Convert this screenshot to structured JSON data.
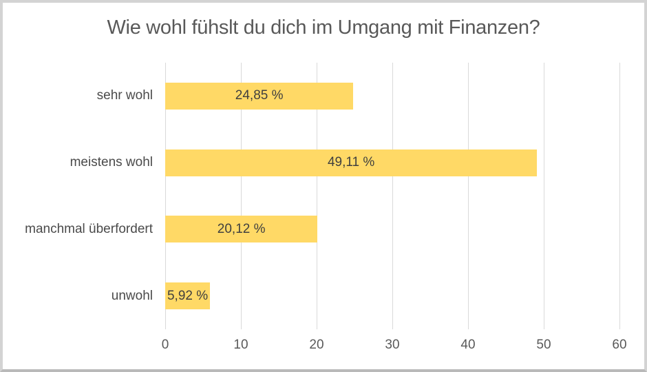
{
  "frame": {
    "background": "#ffffff",
    "border_color": "#d3d3d3"
  },
  "chart_data": {
    "type": "bar",
    "orientation": "horizontal",
    "title": "Wie wohl fühslt du dich im Umgang mit Finanzen?",
    "categories": [
      "sehr wohl",
      "meistens wohl",
      "manchmal überfordert",
      "unwohl"
    ],
    "values": [
      24.85,
      49.11,
      20.12,
      5.92
    ],
    "value_labels": [
      "24,85 %",
      "49,11 %",
      "20,12 %",
      "5,92 %"
    ],
    "xlabel": "",
    "ylabel": "",
    "xlim": [
      0,
      60
    ],
    "x_ticks": [
      0,
      10,
      20,
      30,
      40,
      50,
      60
    ],
    "x_tick_labels": [
      "0",
      "10",
      "20",
      "30",
      "40",
      "50",
      "60"
    ],
    "grid": true,
    "legend": false,
    "bar_color": "#FFD966",
    "gridline_color": "#D9D9D9",
    "title_color": "#595959",
    "value_label_color": "#3F3F3F",
    "axis_text_color": "#595959"
  }
}
